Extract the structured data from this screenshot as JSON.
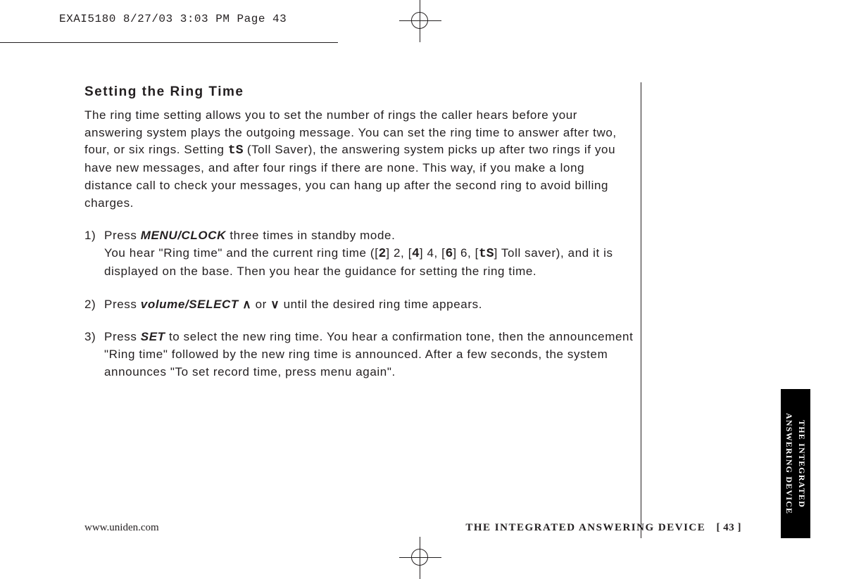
{
  "slug": "EXAI5180  8/27/03 3:03 PM  Page 43",
  "heading": "Setting the Ring Time",
  "intro_pre": "The ring time setting allows you to set the number of rings the caller hears before your answering system plays the outgoing message. You can set the ring time to answer after two, four, or six rings. Setting ",
  "intro_ts": "tS",
  "intro_post": " (Toll Saver), the answering system picks up after two rings if you have new messages, and after four rings if there are none. This way, if you make a long distance call to check your messages, you can hang up after the second ring to avoid billing charges.",
  "step1": {
    "num": "1)",
    "a": "Press ",
    "key": "MENU/CLOCK",
    "b": " three times in standby mode.",
    "c_pre": "You hear \"Ring time\" and the current ring time ([",
    "seg2": "2",
    "c_mid1": "] 2, [",
    "seg4": "4",
    "c_mid2": "] 4, [",
    "seg6": "6",
    "c_mid3": "] 6, [",
    "segts": "tS",
    "c_post": "] Toll saver), and it is displayed on the base. Then you hear the guidance for setting the ring time."
  },
  "step2": {
    "num": "2)",
    "a": "Press ",
    "key": "volume/SELECT",
    "b": " ",
    "up": "∧",
    "c": " or ",
    "down": "∨",
    "d": " until the desired ring time appears."
  },
  "step3": {
    "num": "3)",
    "a": "Press ",
    "key": "SET",
    "b": " to select the new ring time. You hear a confirmation tone, then the announcement \"Ring time\" followed by the new ring time is announced. After a few seconds, the system announces \"To set record time, press menu again\"."
  },
  "footer_url": "www.uniden.com",
  "footer_section": "THE INTEGRATED ANSWERING DEVICE",
  "footer_page": "[ 43 ]",
  "side_tab_l1": "THE INTEGRATED",
  "side_tab_l2": "ANSWERING DEVICE"
}
